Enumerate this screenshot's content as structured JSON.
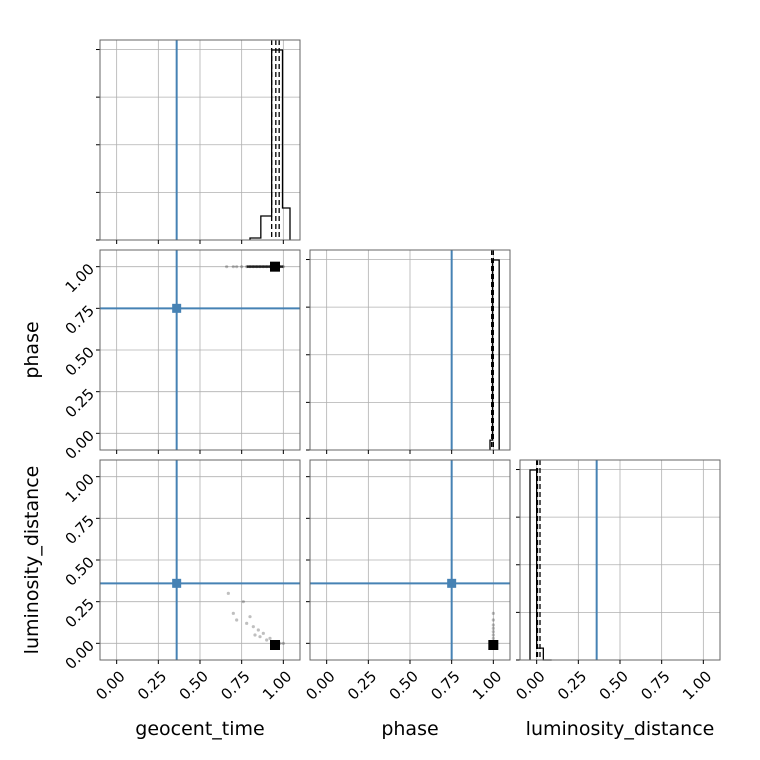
{
  "chart_data": {
    "type": "corner",
    "parameters": [
      "geocent_time",
      "phase",
      "luminosity_distance"
    ],
    "tick_values": [
      0.0,
      0.25,
      0.5,
      0.75,
      1.0
    ],
    "tick_labels": [
      "0.00",
      "0.25",
      "0.50",
      "0.75",
      "1.00"
    ],
    "axis_range": [
      -0.1,
      1.1
    ],
    "truths": {
      "geocent_time": 0.36,
      "phase": 0.75,
      "luminosity_distance": 0.36
    },
    "truth_color": "#4682b4",
    "sample_color": "#000000",
    "grid": true,
    "histograms": {
      "geocent_time": {
        "bin_edges": [
          0.8,
          0.865,
          0.93,
          0.995,
          1.04
        ],
        "counts": [
          0.01,
          0.12,
          0.95,
          0.16
        ],
        "quantiles": [
          0.93,
          0.955,
          0.975
        ]
      },
      "phase": {
        "bin_edges": [
          0.98,
          0.995,
          1.035
        ],
        "counts": [
          0.05,
          0.96
        ],
        "quantiles": [
          0.99,
          1.0,
          1.0
        ]
      },
      "luminosity_distance": {
        "bin_edges": [
          -0.04,
          0.0,
          0.04,
          0.09
        ],
        "counts": [
          0.96,
          0.06,
          0.0
        ],
        "quantiles": [
          0.0,
          0.005,
          0.02
        ]
      }
    },
    "scatter_panels": [
      {
        "x": "geocent_time",
        "y": "phase",
        "points": [
          [
            0.66,
            1.0
          ],
          [
            0.7,
            1.0
          ],
          [
            0.72,
            1.0
          ],
          [
            0.75,
            1.0
          ],
          [
            0.78,
            1.0
          ],
          [
            0.8,
            1.0
          ],
          [
            0.82,
            1.0
          ],
          [
            0.84,
            1.0
          ],
          [
            0.86,
            1.0
          ],
          [
            0.88,
            1.0
          ],
          [
            0.9,
            1.0
          ],
          [
            0.92,
            1.0
          ],
          [
            0.94,
            1.0
          ],
          [
            0.96,
            1.0
          ],
          [
            0.98,
            1.0
          ],
          [
            1.0,
            1.0
          ]
        ],
        "density_peak": [
          0.95,
          1.0
        ]
      },
      {
        "x": "geocent_time",
        "y": "luminosity_distance",
        "points": [
          [
            0.67,
            0.3
          ],
          [
            0.7,
            0.18
          ],
          [
            0.72,
            0.14
          ],
          [
            0.76,
            0.25
          ],
          [
            0.78,
            0.12
          ],
          [
            0.8,
            0.16
          ],
          [
            0.82,
            0.1
          ],
          [
            0.83,
            0.05
          ],
          [
            0.85,
            0.08
          ],
          [
            0.86,
            0.04
          ],
          [
            0.88,
            0.06
          ],
          [
            0.9,
            0.02
          ],
          [
            0.92,
            0.03
          ],
          [
            0.94,
            0.01
          ],
          [
            0.96,
            0.0
          ],
          [
            0.98,
            0.0
          ],
          [
            1.0,
            0.0
          ]
        ],
        "density_peak": [
          0.95,
          -0.01
        ]
      },
      {
        "x": "phase",
        "y": "luminosity_distance",
        "points": [
          [
            1.0,
            0.18
          ],
          [
            1.0,
            0.14
          ],
          [
            1.0,
            0.11
          ],
          [
            1.0,
            0.09
          ],
          [
            1.0,
            0.07
          ],
          [
            1.0,
            0.05
          ],
          [
            1.0,
            0.03
          ],
          [
            1.0,
            0.01
          ],
          [
            1.0,
            0.0
          ]
        ],
        "density_peak": [
          1.0,
          -0.01
        ]
      }
    ]
  }
}
